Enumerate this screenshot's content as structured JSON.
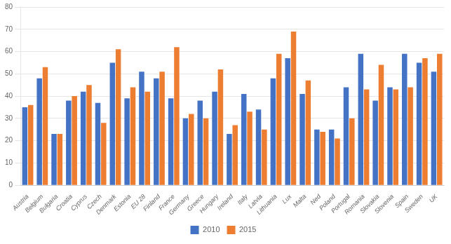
{
  "chart_data": {
    "type": "bar",
    "categories": [
      "Austria",
      "Belgium",
      "Bulgaria",
      "Croatia",
      "Cyprus",
      "Czech",
      "Denmark",
      "Estonia",
      "EU 28",
      "Finland",
      "France",
      "Germany",
      "Greece",
      "Hungary",
      "Ireland",
      "Italy",
      "Latvia",
      "Lithuania",
      "Lux",
      "Malta",
      "Ned",
      "Poland",
      "Portugal",
      "Romania",
      "Slovakia",
      "Slovenia",
      "Spain",
      "Sweden",
      "UK"
    ],
    "series": [
      {
        "name": "2010",
        "color": "#4472C4",
        "values": [
          35,
          48,
          23,
          38,
          42,
          37,
          55,
          39,
          51,
          48,
          39,
          30,
          38,
          42,
          23,
          41,
          34,
          48,
          57,
          41,
          25,
          25,
          44,
          59,
          38,
          44,
          59,
          55,
          51
        ]
      },
      {
        "name": "2015",
        "color": "#ED7D31",
        "values": [
          36,
          53,
          23,
          40,
          45,
          28,
          61,
          44,
          42,
          51,
          62,
          32,
          30,
          52,
          27,
          33,
          25,
          59,
          69,
          47,
          24,
          21,
          30,
          43,
          54,
          43,
          44,
          57,
          59
        ]
      }
    ],
    "ylim": [
      0,
      80
    ],
    "yticks": [
      0,
      10,
      20,
      30,
      40,
      50,
      60,
      70,
      80
    ],
    "grid": true,
    "legend": "bottom"
  }
}
